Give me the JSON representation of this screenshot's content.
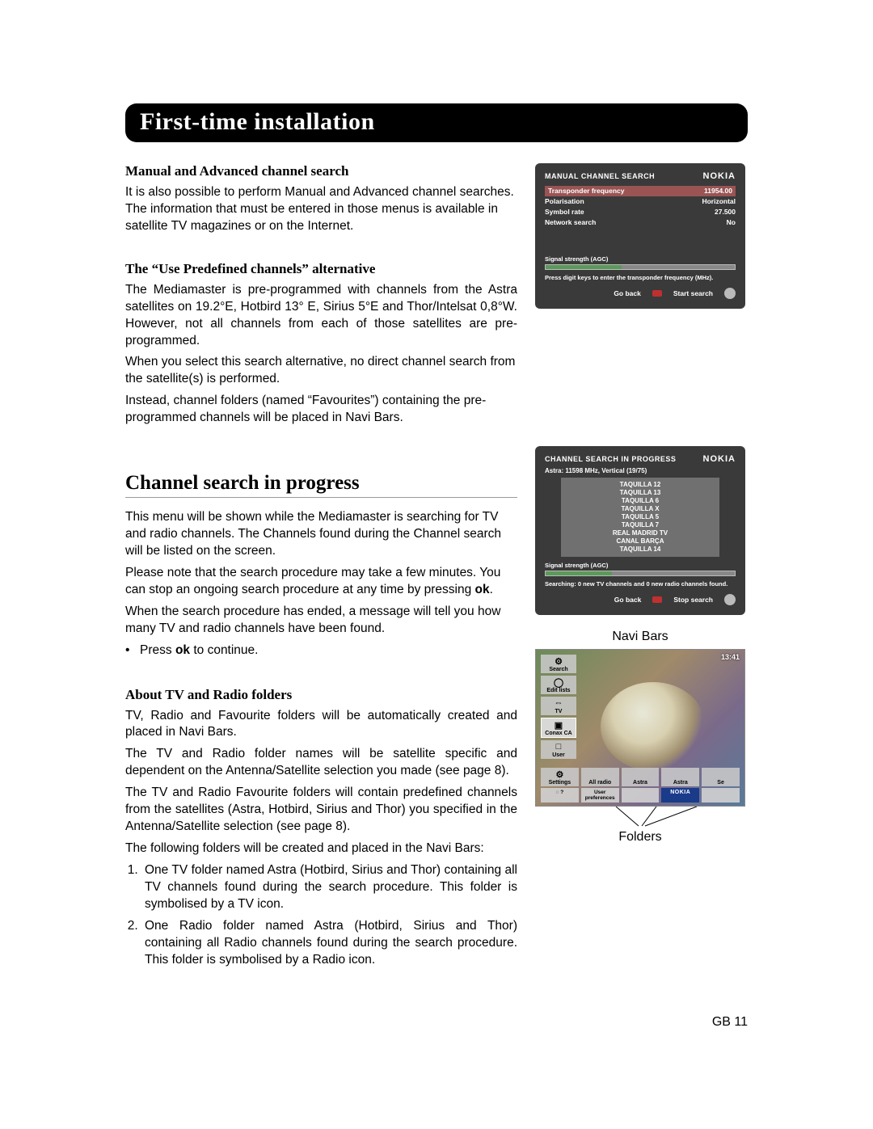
{
  "title": "First-time installation",
  "section1": {
    "heading": "Manual and Advanced channel search",
    "p1": "It is also possible to perform Manual and Advanced channel searches. The information that must be entered in those menus is available in satellite TV magazines or on the Internet."
  },
  "section2": {
    "heading": "The “Use Predefined channels” alternative",
    "p1": "The Mediamaster is pre-programmed with channels from the Astra satellites on 19.2°E, Hotbird 13° E, Sirius 5°E and Thor/Intelsat 0,8°W. However, not all channels from each of those satellites are pre-programmed.",
    "p2": "When you select this search alternative, no direct channel search from the satellite(s) is performed.",
    "p3": "Instead, channel folders (named “Favourites”) containing the pre-programmed channels will be placed in Navi Bars."
  },
  "section3": {
    "heading": "Channel search in progress",
    "p1": "This menu will be shown while the Mediamaster is searching for TV and radio channels. The Channels found during the Channel search will be listed on the screen.",
    "p2_a": "Please note that the search procedure may take a few minutes. You can stop an ongoing search procedure at any time by pressing ",
    "p2_b": "ok",
    "p2_c": ".",
    "p3": "When the search procedure has ended, a message will tell you how many TV and radio channels have been found.",
    "bullet_a": "Press ",
    "bullet_b": "ok",
    "bullet_c": " to continue."
  },
  "section4": {
    "heading": "About TV and Radio folders",
    "p1": "TV, Radio and Favourite folders will be automatically created and placed in Navi Bars.",
    "p2": "The TV and Radio folder names will be satellite specific and dependent on the Antenna/Satellite selection you made (see page 8).",
    "p3": "The TV and Radio Favourite folders will contain predefined channels from the satellites (Astra, Hotbird, Sirius and Thor) you specified in the Antenna/Satellite selection (see page 8).",
    "p4": "The following folders will be created and placed in the Navi Bars:",
    "li1": "One TV folder named Astra (Hotbird, Sirius and Thor) containing all TV channels found during the search procedure. This folder is symbolised by a TV icon.",
    "li2": "One Radio folder named Astra (Hotbird, Sirius and Thor) containing all Radio channels found during the search procedure. This folder is symbolised by a Radio icon."
  },
  "panel1": {
    "title": "MANUAL CHANNEL SEARCH",
    "logo": "NOKIA",
    "rows": {
      "r1k": "Transponder frequency",
      "r1v": "11954.00",
      "r2k": "Polarisation",
      "r2v": "Horizontal",
      "r3k": "Symbol rate",
      "r3v": "27.500",
      "r4k": "Network search",
      "r4v": "No"
    },
    "sig_label": "Signal strength (AGC)",
    "sig_fill": 40,
    "hint": "Press digit keys to enter the transponder frequency (MHz).",
    "back": "Go back",
    "start": "Start search"
  },
  "panel2": {
    "title": "CHANNEL SEARCH IN PROGRESS",
    "sub": "Astra: 11598 MHz, Vertical (19/75)",
    "logo": "NOKIA",
    "channels": [
      "TAQUILLA 12",
      "TAQUILLA 13",
      "TAQUILLA 6",
      "TAQUILLA X",
      "TAQUILLA 5",
      "TAQUILLA 7",
      "REAL MADRID TV",
      "CANAL BARÇA",
      "TAQUILLA 14"
    ],
    "sig_label": "Signal strength (AGC)",
    "sig_fill": 35,
    "hint": "Searching: 0 new TV channels and 0 new radio channels found.",
    "back": "Go back",
    "stop": "Stop search"
  },
  "navibars": {
    "label_top": "Navi Bars",
    "label_bottom": "Folders",
    "clock": "13:41",
    "vcol": [
      {
        "icon": "⚙",
        "label": "Search"
      },
      {
        "icon": "◯",
        "label": "Edit lists"
      },
      {
        "icon": "⇔",
        "label": "TV"
      },
      {
        "icon": "▣",
        "label": "Conax CA"
      },
      {
        "icon": "□",
        "label": "User"
      }
    ],
    "hrow": [
      {
        "icon": "⚙",
        "label": "Settings"
      },
      {
        "icon": "",
        "label": "All radio"
      },
      {
        "icon": "",
        "label": "Astra"
      },
      {
        "icon": "",
        "label": "Astra"
      },
      {
        "icon": "",
        "label": "Se"
      }
    ],
    "botrow": [
      "◌ ?",
      "User preferences",
      "",
      "NOKIA",
      ""
    ]
  },
  "page_num": "GB 11",
  "colors": {
    "titlebar_bg": "#000000",
    "panel_bg": "#3a3a3a",
    "panel_hl": "#9a5454",
    "sig_fill": "#5a9a5a",
    "nokia_blue": "#1a3a8a"
  }
}
